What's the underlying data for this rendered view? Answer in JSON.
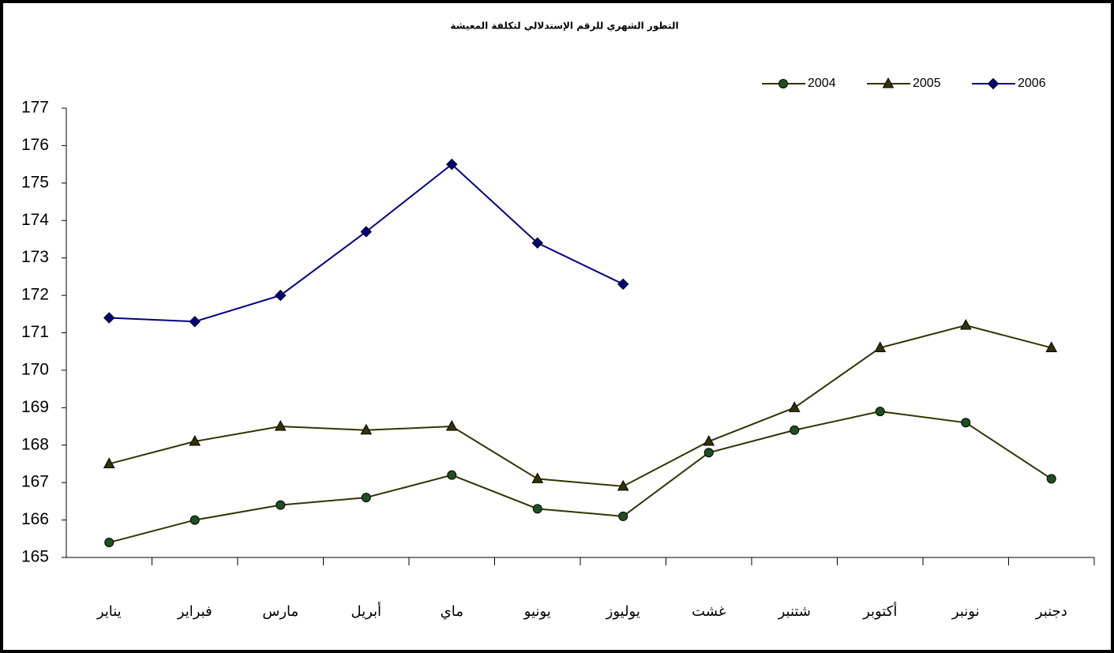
{
  "chart_data": {
    "type": "line",
    "title": "التطور الشهري للرقم الإستدلالي لتكلفة المعيشة",
    "categories": [
      "يناير",
      "فبراير",
      "مارس",
      "أبريل",
      "ماي",
      "يونيو",
      "يوليوز",
      "غشت",
      "شتنبر",
      "أكتوبر",
      "نونبر",
      "دجنبر"
    ],
    "series": [
      {
        "name": "2004",
        "color": "#333300",
        "marker": "circle",
        "marker_color": "#1f4f1f",
        "values": [
          165.4,
          166.0,
          166.4,
          166.6,
          167.2,
          166.3,
          166.1,
          167.8,
          168.4,
          168.9,
          168.6,
          167.1
        ]
      },
      {
        "name": "2005",
        "color": "#333300",
        "marker": "triangle",
        "marker_color": "#333300",
        "values": [
          167.5,
          168.1,
          168.5,
          168.4,
          168.5,
          167.1,
          166.9,
          168.1,
          169.0,
          170.6,
          171.2,
          170.6
        ]
      },
      {
        "name": "2006",
        "color": "#000080",
        "marker": "diamond",
        "marker_color": "#000080",
        "values": [
          171.4,
          171.3,
          172.0,
          173.7,
          175.5,
          173.4,
          172.3,
          null,
          null,
          null,
          null,
          null
        ]
      }
    ],
    "ylim": [
      165,
      177
    ],
    "yticks": [
      165,
      166,
      167,
      168,
      169,
      170,
      171,
      172,
      173,
      174,
      175,
      176,
      177
    ],
    "grid": false,
    "legend": "top-right"
  }
}
